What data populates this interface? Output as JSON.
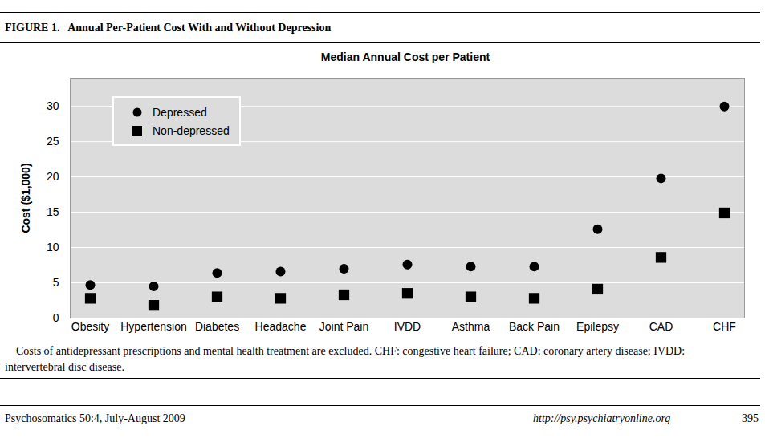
{
  "header": {
    "label": "FIGURE 1.",
    "title": "Annual Per-Patient Cost With and Without Depression"
  },
  "chart_data": {
    "type": "scatter",
    "title": "Median Annual Cost per Patient",
    "y_label": "Cost ($1,000)",
    "categories": [
      "Obesity",
      "Hypertension",
      "Diabetes",
      "Headache",
      "Joint Pain",
      "IVDD",
      "Asthma",
      "Back Pain",
      "Epilepsy",
      "CAD",
      "CHF"
    ],
    "series": [
      {
        "name": "Depressed",
        "color": "#000000",
        "marker": "circle",
        "values": [
          4.7,
          4.5,
          6.4,
          6.6,
          7.0,
          7.6,
          7.3,
          7.3,
          12.6,
          19.8,
          30.0
        ]
      },
      {
        "name": "Non-depressed",
        "color": "#000000",
        "marker": "square",
        "values": [
          2.8,
          1.8,
          3.0,
          2.8,
          3.3,
          3.5,
          3.0,
          2.8,
          4.1,
          8.6,
          14.9
        ]
      }
    ],
    "ylim": [
      0,
      34
    ],
    "yticks": [
      0,
      5,
      10,
      15,
      20,
      25,
      30
    ],
    "grid": true,
    "legend": "top-left"
  },
  "caption": "Costs of antidepressant prescriptions and mental health treatment are excluded. CHF: congestive heart failure; CAD: coronary artery disease; IVDD: intervertebral disc disease.",
  "footer": {
    "journal": "Psychosomatics 50:4, July-August 2009",
    "url": "http://psy.psychiatryonline.org",
    "page": 395
  }
}
